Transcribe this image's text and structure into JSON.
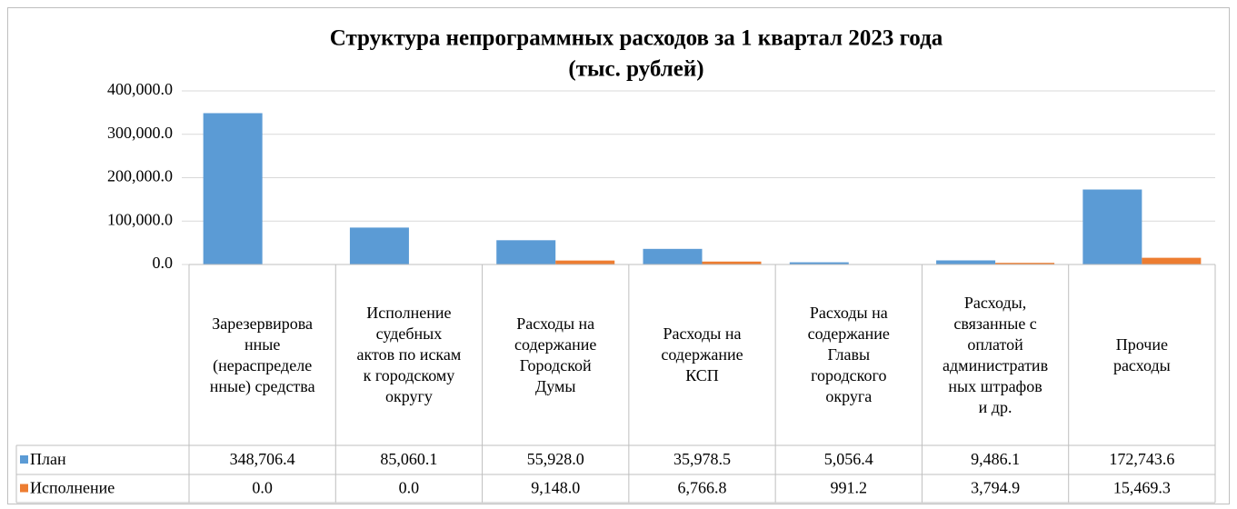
{
  "chart_data": {
    "type": "bar",
    "title": "Структура непрограммных расходов за 1 квартал 2023 года",
    "subtitle": "(тыс. рублей)",
    "categories": [
      "Зарезервированные (нераспределенные) средства",
      "Исполнение судебных актов по искам к городскому округу",
      "Расходы на содержание Городской Думы",
      "Расходы на содержание КСП",
      "Расходы на содержание Главы городского округа",
      "Расходы, связанные с оплатой административных штрафов и др.",
      "Прочие расходы"
    ],
    "series": [
      {
        "name": "План",
        "color": "#5b9bd5",
        "values": [
          348706.4,
          85060.1,
          55928.0,
          35978.5,
          5056.4,
          9486.1,
          172743.6
        ],
        "value_labels": [
          "348,706.4",
          "85,060.1",
          "55,928.0",
          "35,978.5",
          "5,056.4",
          "9,486.1",
          "172,743.6"
        ]
      },
      {
        "name": "Исполнение",
        "color": "#ed7d31",
        "values": [
          0,
          0,
          9148.0,
          6766.8,
          991.2,
          3794.9,
          15469.3
        ],
        "value_labels": [
          "0.0",
          "0.0",
          "9,148.0",
          "6,766.8",
          "991.2",
          "3,794.9",
          "15,469.3"
        ]
      }
    ],
    "ylim": [
      0,
      400000
    ],
    "yticks": [
      {
        "value": 0,
        "label": "0.0"
      },
      {
        "value": 100000,
        "label": "100,000.0"
      },
      {
        "value": 200000,
        "label": "200,000.0"
      },
      {
        "value": 300000,
        "label": "300,000.0"
      },
      {
        "value": 400000,
        "label": "400,000.0"
      }
    ],
    "grid": true
  }
}
